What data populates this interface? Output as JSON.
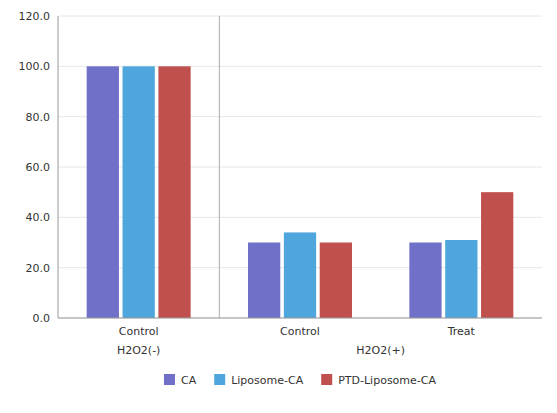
{
  "chart_data": {
    "type": "bar",
    "categories": [
      "Control",
      "Control",
      "Treat"
    ],
    "series": [
      {
        "name": "CA",
        "color": "#7070C8",
        "values": [
          100,
          30,
          30
        ]
      },
      {
        "name": "Liposome-CA",
        "color": "#4EA6DC",
        "values": [
          100,
          34,
          31
        ]
      },
      {
        "name": "PTD-Liposome-CA",
        "color": "#C0504D",
        "values": [
          100,
          30,
          50
        ]
      }
    ],
    "ylim": [
      0,
      120
    ],
    "yticks": [
      {
        "value": 0,
        "label": "0.0"
      },
      {
        "value": 20,
        "label": "20.0"
      },
      {
        "value": 40,
        "label": "40.0"
      },
      {
        "value": 60,
        "label": "60.0"
      },
      {
        "value": 80,
        "label": "80.0"
      },
      {
        "value": 100,
        "label": "100.0"
      },
      {
        "value": 120,
        "label": "120.0"
      }
    ],
    "annotations": [
      "H2O2(-)",
      "H2O2(+)"
    ],
    "grid": true,
    "legend": "bottom"
  }
}
